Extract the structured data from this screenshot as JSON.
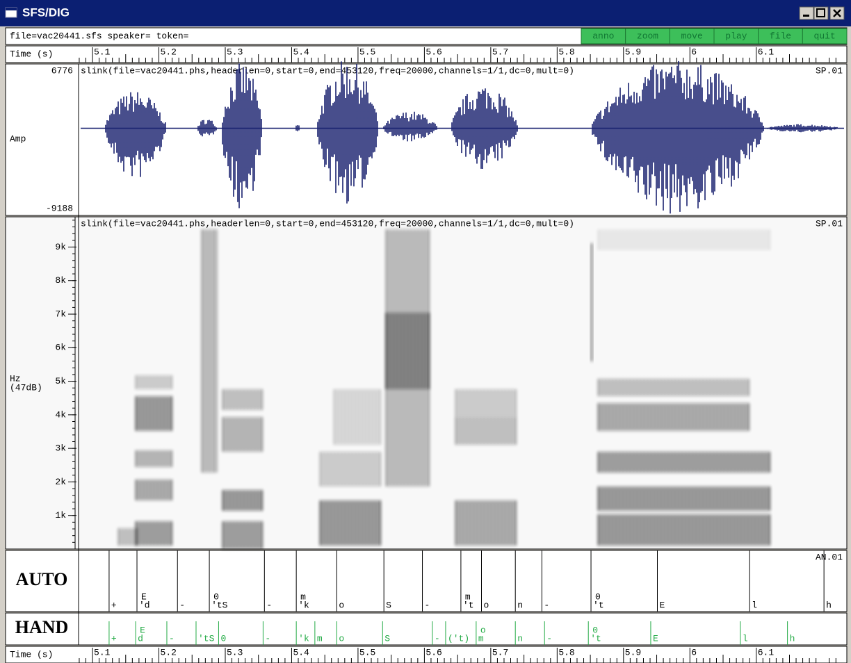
{
  "window": {
    "title": "SFS/DIG"
  },
  "toolbar": {
    "file_info": "file=vac20441.sfs speaker= token=",
    "buttons": [
      "anno",
      "zoom",
      "move",
      "play",
      "file",
      "quit"
    ]
  },
  "time_axis": {
    "label": "Time (s)",
    "range": [
      5.079,
      6.227
    ],
    "ticks": [
      5.1,
      5.2,
      5.3,
      5.4,
      5.5,
      5.6,
      5.7,
      5.8,
      5.9,
      6.0,
      6.1
    ]
  },
  "waveform": {
    "header": "slink(file=vac20441.phs,headerlen=0,start=0,end=453120,freq=20000,channels=1/1,dc=0,mult=0)",
    "item": "SP.01",
    "ylabel": "Amp",
    "max": 6776,
    "min": -9188
  },
  "spectrogram": {
    "header": "slink(file=vac20441.phs,headerlen=0,start=0,end=453120,freq=20000,channels=1/1,dc=0,mult=0)",
    "item": "SP.01",
    "ylabel": "Hz",
    "ylabel2": "(47dB)",
    "range": [
      0,
      9900
    ],
    "ticks": [
      {
        "value": 1000,
        "label": "1k"
      },
      {
        "value": 2000,
        "label": "2k"
      },
      {
        "value": 3000,
        "label": "3k"
      },
      {
        "value": 4000,
        "label": "4k"
      },
      {
        "value": 5000,
        "label": "5k"
      },
      {
        "value": 6000,
        "label": "6k"
      },
      {
        "value": 7000,
        "label": "7k"
      },
      {
        "value": 8000,
        "label": "8k"
      },
      {
        "value": 9000,
        "label": "9k"
      }
    ]
  },
  "annotations": [
    {
      "name": "AUTO",
      "item": "AN.01",
      "color": "#000000",
      "labels": [
        {
          "text": "+",
          "time": 5.125
        },
        {
          "text": "'d",
          "upper": "E",
          "time": 5.167
        },
        {
          "text": "-",
          "time": 5.228
        },
        {
          "text": "'tS",
          "upper": "0",
          "time": 5.276
        },
        {
          "text": "-",
          "time": 5.359
        },
        {
          "text": "'k",
          "upper": "m",
          "time": 5.407
        },
        {
          "text": "o",
          "time": 5.468
        },
        {
          "text": "S",
          "time": 5.539
        },
        {
          "text": "-",
          "time": 5.597
        },
        {
          "text": "'t",
          "upper": "m",
          "time": 5.655
        },
        {
          "text": "o",
          "time": 5.686
        },
        {
          "text": "n",
          "time": 5.737
        },
        {
          "text": "-",
          "time": 5.777
        },
        {
          "text": "'t",
          "upper": "0",
          "time": 5.851
        },
        {
          "text": "E",
          "time": 5.951
        },
        {
          "text": "l",
          "time": 6.09
        },
        {
          "text": "h",
          "time": 6.202
        }
      ]
    },
    {
      "name": "HAND",
      "color": "#22aa44",
      "labels": [
        {
          "text": "+",
          "time": 5.125
        },
        {
          "text": "d",
          "upper": "E",
          "time": 5.165
        },
        {
          "text": "-",
          "time": 5.212
        },
        {
          "text": "'tS",
          "time": 5.256
        },
        {
          "text": "0",
          "time": 5.29
        },
        {
          "text": "-",
          "time": 5.357
        },
        {
          "text": "'k",
          "time": 5.407
        },
        {
          "text": "m",
          "time": 5.435
        },
        {
          "text": "o",
          "time": 5.468
        },
        {
          "text": "S",
          "time": 5.537
        },
        {
          "text": "-",
          "time": 5.612
        },
        {
          "text": "('t)",
          "time": 5.632
        },
        {
          "text": "m",
          "upper": "o",
          "time": 5.678
        },
        {
          "text": "n",
          "time": 5.737
        },
        {
          "text": "-",
          "time": 5.781
        },
        {
          "text": "'t",
          "upper": "0",
          "time": 5.847
        },
        {
          "text": "E",
          "time": 5.941
        },
        {
          "text": "l",
          "time": 6.076
        },
        {
          "text": "h",
          "time": 6.147
        }
      ]
    }
  ]
}
